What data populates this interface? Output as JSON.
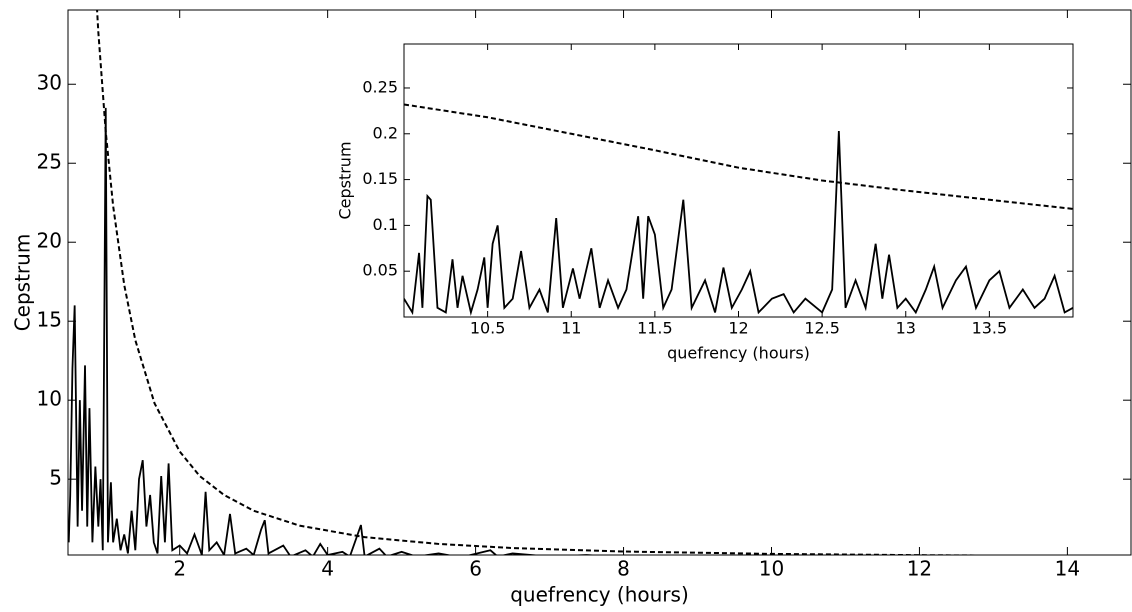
{
  "chart_data": [
    {
      "type": "line",
      "xlabel": "quefrency (hours)",
      "ylabel": "Cepstrum",
      "xlim": [
        0.49,
        14.86
      ],
      "ylim": [
        0.2,
        34.7
      ],
      "xticks": [
        2,
        4,
        6,
        8,
        10,
        12,
        14
      ],
      "yticks": [
        5,
        10,
        15,
        20,
        25,
        30
      ],
      "series": [
        {
          "color": "#000000",
          "style": "solid",
          "x": [
            0.5,
            0.52,
            0.55,
            0.58,
            0.62,
            0.65,
            0.68,
            0.72,
            0.75,
            0.78,
            0.82,
            0.86,
            0.9,
            0.93,
            0.96,
            1.0,
            1.03,
            1.07,
            1.1,
            1.15,
            1.2,
            1.25,
            1.3,
            1.35,
            1.4,
            1.45,
            1.5,
            1.55,
            1.6,
            1.65,
            1.7,
            1.75,
            1.8,
            1.85,
            1.9,
            2.0,
            2.1,
            2.2,
            2.3,
            2.35,
            2.4,
            2.5,
            2.6,
            2.68,
            2.75,
            2.9,
            3.0,
            3.1,
            3.15,
            3.2,
            3.4,
            3.5,
            3.7,
            3.8,
            3.9,
            4.0,
            4.2,
            4.3,
            4.45,
            4.5,
            4.7,
            4.8,
            5.0,
            5.2,
            5.5,
            5.8,
            6.2,
            6.3,
            6.5,
            7.0,
            7.5,
            8.0,
            9.0,
            10.0,
            11.0,
            12.0,
            13.0,
            14.0,
            14.8
          ],
          "values": [
            1,
            4,
            12,
            16,
            2,
            10,
            3,
            12.2,
            2,
            9.5,
            1,
            5.8,
            2,
            5,
            0.5,
            28.5,
            1,
            4.8,
            1,
            2.5,
            0.5,
            1.5,
            0.3,
            3,
            0.5,
            5,
            6.2,
            2,
            4,
            1,
            0.3,
            5.2,
            1,
            6,
            0.5,
            0.8,
            0.3,
            1.5,
            0.2,
            4.2,
            0.5,
            1,
            0.2,
            2.8,
            0.3,
            0.6,
            0.2,
            1.8,
            2.4,
            0.3,
            0.8,
            0.1,
            0.5,
            0.1,
            0.9,
            0.2,
            0.4,
            0.1,
            2.1,
            0.1,
            0.6,
            0.1,
            0.4,
            0.1,
            0.3,
            0.05,
            0.5,
            0.1,
            0.3,
            0.1,
            0.2,
            0.05,
            0.1,
            0.05,
            0.08,
            0.05,
            0.06,
            0.05,
            0.05
          ]
        },
        {
          "color": "#000000",
          "style": "dashed",
          "x": [
            0.85,
            0.9,
            1.0,
            1.1,
            1.25,
            1.4,
            1.66,
            2.0,
            2.27,
            2.6,
            3.0,
            3.62,
            4.5,
            5.5,
            6.5,
            8.0,
            10.0,
            12.0,
            14.86
          ],
          "values": [
            37.4,
            33.3,
            27,
            22.3,
            17.3,
            13.8,
            9.8,
            6.75,
            5.2,
            4.0,
            3.0,
            2.06,
            1.33,
            0.9,
            0.64,
            0.42,
            0.27,
            0.19,
            0.12
          ]
        }
      ]
    },
    {
      "type": "line",
      "xlabel": "quefrency (hours)",
      "ylabel": "Cepstrum",
      "xlim": [
        10,
        14
      ],
      "ylim": [
        0,
        0.298
      ],
      "xticks": [
        10.5,
        11,
        11.5,
        12,
        12.5,
        13,
        13.5
      ],
      "yticks": [
        0.05,
        0.1,
        0.15,
        0.2,
        0.25
      ],
      "series": [
        {
          "color": "#000000",
          "style": "solid",
          "x": [
            10.0,
            10.05,
            10.09,
            10.11,
            10.14,
            10.16,
            10.2,
            10.25,
            10.29,
            10.32,
            10.35,
            10.4,
            10.44,
            10.48,
            10.5,
            10.53,
            10.56,
            10.6,
            10.65,
            10.7,
            10.75,
            10.81,
            10.86,
            10.91,
            10.95,
            11.01,
            11.05,
            11.12,
            11.17,
            11.22,
            11.28,
            11.33,
            11.4,
            11.43,
            11.46,
            11.5,
            11.55,
            11.6,
            11.67,
            11.72,
            11.8,
            11.86,
            11.91,
            11.96,
            12.02,
            12.07,
            12.12,
            12.2,
            12.27,
            12.33,
            12.4,
            12.5,
            12.56,
            12.6,
            12.64,
            12.7,
            12.76,
            12.82,
            12.86,
            12.9,
            12.95,
            13.0,
            13.06,
            13.12,
            13.17,
            13.22,
            13.3,
            13.36,
            13.42,
            13.5,
            13.56,
            13.62,
            13.7,
            13.77,
            13.83,
            13.89,
            13.95,
            14.0
          ],
          "values": [
            0.02,
            0.005,
            0.07,
            0.01,
            0.132,
            0.128,
            0.01,
            0.005,
            0.063,
            0.01,
            0.045,
            0.005,
            0.03,
            0.065,
            0.01,
            0.08,
            0.1,
            0.01,
            0.02,
            0.072,
            0.01,
            0.03,
            0.005,
            0.108,
            0.01,
            0.053,
            0.02,
            0.075,
            0.01,
            0.04,
            0.01,
            0.03,
            0.11,
            0.02,
            0.11,
            0.09,
            0.01,
            0.03,
            0.128,
            0.01,
            0.04,
            0.005,
            0.054,
            0.01,
            0.03,
            0.05,
            0.005,
            0.02,
            0.025,
            0.005,
            0.02,
            0.005,
            0.03,
            0.203,
            0.01,
            0.04,
            0.01,
            0.08,
            0.02,
            0.068,
            0.01,
            0.02,
            0.005,
            0.03,
            0.055,
            0.01,
            0.04,
            0.055,
            0.01,
            0.04,
            0.05,
            0.01,
            0.03,
            0.01,
            0.02,
            0.045,
            0.005,
            0.01
          ]
        },
        {
          "color": "#000000",
          "style": "dashed",
          "x": [
            10.0,
            10.5,
            11.0,
            11.5,
            12.0,
            12.5,
            13.0,
            13.5,
            14.0
          ],
          "values": [
            0.232,
            0.218,
            0.2,
            0.182,
            0.163,
            0.149,
            0.138,
            0.128,
            0.118
          ]
        }
      ]
    }
  ]
}
